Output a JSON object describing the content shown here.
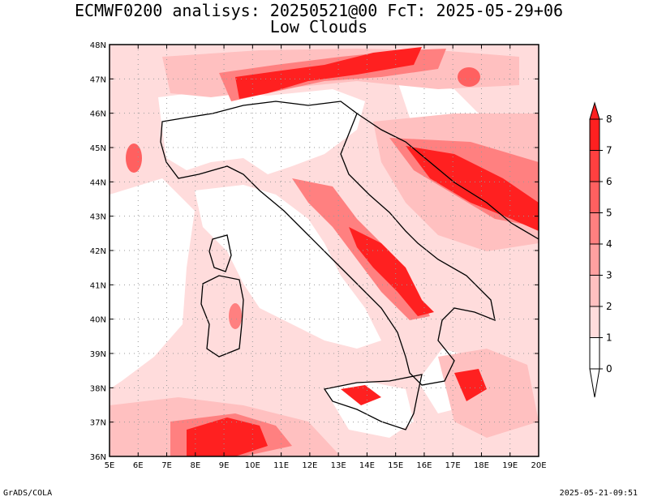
{
  "title": "ECMWF0200 analisys: 20250521@00 FcT: 2025-05-29+06",
  "subtitle": "Low Clouds",
  "footer": {
    "left": "GrADS/COLA",
    "right": "2025-05-21-09:51"
  },
  "axes": {
    "lon_labels": [
      "5E",
      "6E",
      "7E",
      "8E",
      "9E",
      "10E",
      "11E",
      "12E",
      "13E",
      "14E",
      "15E",
      "16E",
      "17E",
      "18E",
      "19E",
      "20E"
    ],
    "lat_labels": [
      "36N",
      "37N",
      "38N",
      "39N",
      "40N",
      "41N",
      "42N",
      "43N",
      "44N",
      "45N",
      "46N",
      "47N",
      "48N"
    ],
    "lon_range": [
      5,
      20
    ],
    "lat_range": [
      36,
      48
    ],
    "grid": "dotted"
  },
  "colorbar": {
    "levels": [
      "0",
      "1",
      "2",
      "3",
      "4",
      "5",
      "6",
      "7",
      "8"
    ],
    "colors": [
      "#ffffff",
      "#ffdcdc",
      "#ffc0c0",
      "#ffa0a0",
      "#ff8080",
      "#ff6060",
      "#ff4040",
      "#ff2020"
    ],
    "extend": "both"
  },
  "chart_data": {
    "type": "heatmap",
    "title": "ECMWF0200 analisys: 20250521@00 FcT: 2025-05-29+06",
    "subtitle": "Low Clouds",
    "xlabel": "",
    "ylabel": "",
    "xlim": [
      5,
      20
    ],
    "ylim": [
      36,
      48
    ]
  }
}
